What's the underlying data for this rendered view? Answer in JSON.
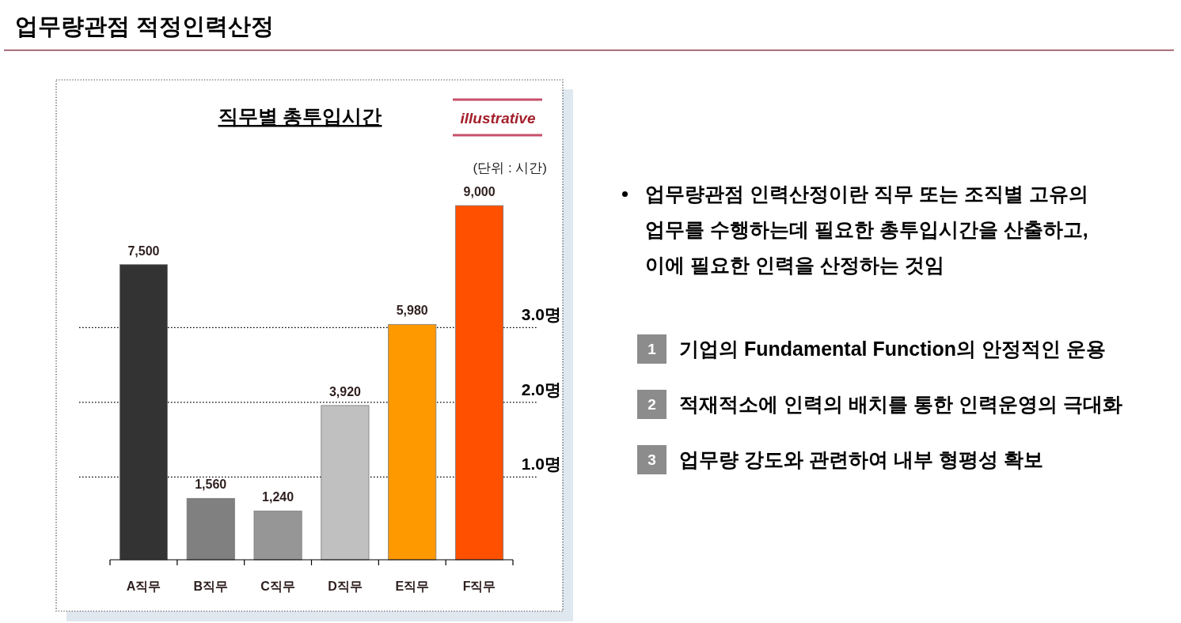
{
  "chart_data": [
    {
      "type": "bar",
      "title": "업무량관점 적정인력산정",
      "subtitle": "직무별 총투입시간",
      "categories": [
        "A직무",
        "B직무",
        "C직무",
        "D직무",
        "E직무",
        "F직무"
      ],
      "values": [
        7500,
        1560,
        1240,
        3920,
        5980,
        9000
      ],
      "colors": [
        "#333333",
        "#808080",
        "#969696",
        "#c0c0c0",
        "#ff9900",
        "#ff5000"
      ],
      "value_labels": [
        "7,500",
        "1,560",
        "1,240",
        "3,920",
        "5,980",
        "9,000"
      ],
      "ref_lines": [
        {
          "axis": "y",
          "value": 2100,
          "label": "1.0명",
          "color": "#000000",
          "line_style": "dotted"
        },
        {
          "axis": "y",
          "value": 4000,
          "label": "2.0명",
          "color": "#000000",
          "line_style": "dotted"
        },
        {
          "axis": "y",
          "value": 5900,
          "label": "3.0명",
          "color": "#000000",
          "line_style": "dotted"
        }
      ],
      "annotations": [
        "illustrative",
        "(단위 : 시간)"
      ]
    },
    {
      "type": "other",
      "annotations": [
        "업무량관점 인력산정이란 직무 또는 조직별 고유의 업무를 수행하는데 필요한 총투입시간을 산출하고, 이에 필요한 인력을 산정하는 것임",
        "1",
        "기업의 Fundamental Function의 안정적인 운용",
        "2",
        "적재적소에 인력의 배치를 통한 인력운영의 극대화",
        "3",
        "업무량 강도와 관련하여 내부 형평성 확보"
      ]
    }
  ]
}
